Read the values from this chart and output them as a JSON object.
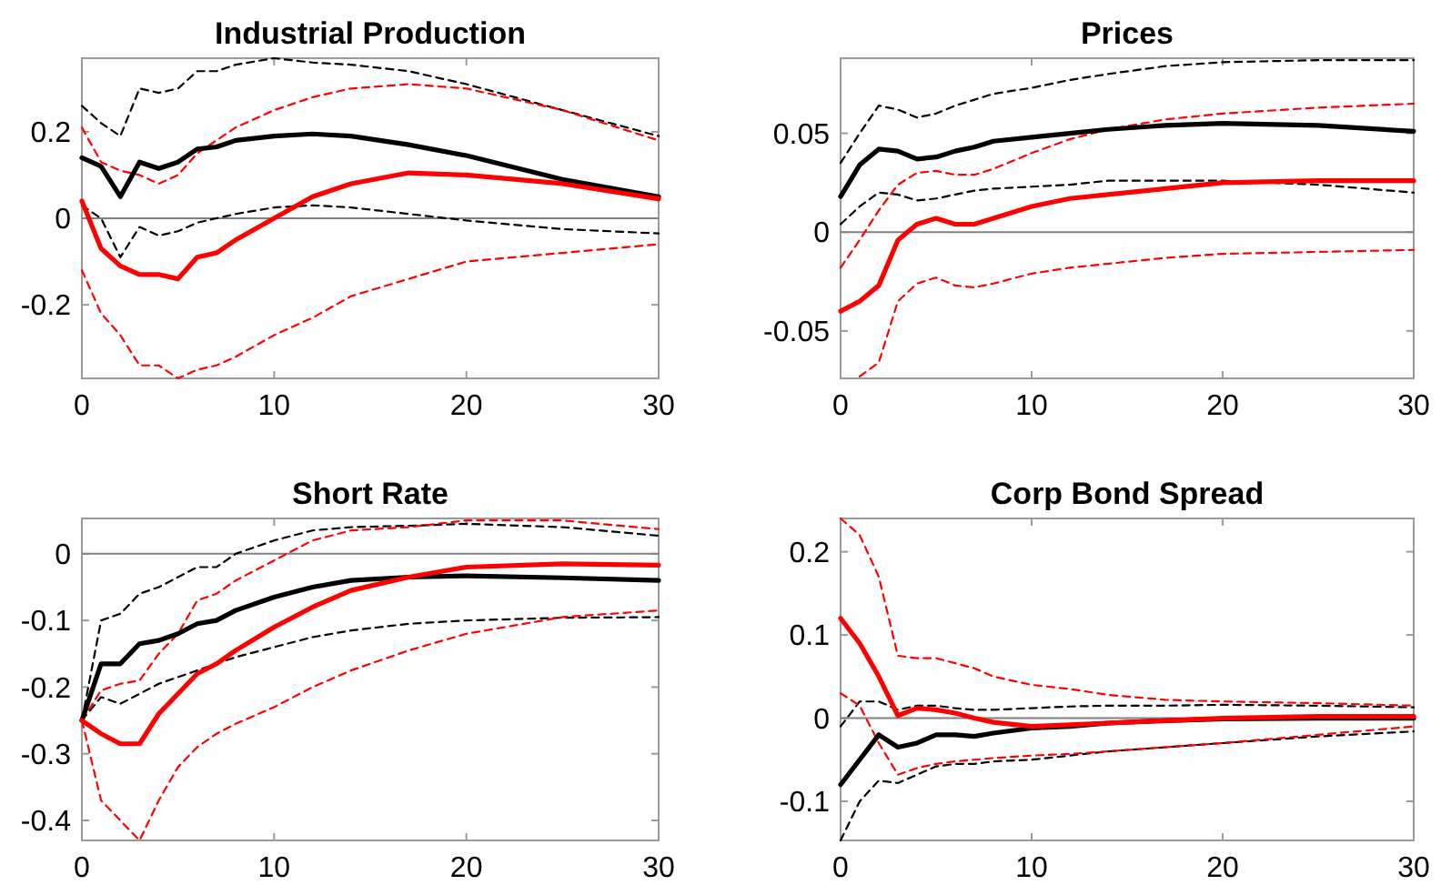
{
  "chart_data": [
    {
      "type": "line",
      "title": "Industrial Production",
      "x": [
        0,
        1,
        2,
        3,
        4,
        5,
        6,
        7,
        8,
        10,
        12,
        14,
        17,
        20,
        25,
        30
      ],
      "xlim": [
        0,
        30
      ],
      "xticks": [
        0,
        10,
        20,
        30
      ],
      "ylim": [
        -0.37,
        0.37
      ],
      "yticks": [
        -0.2,
        0,
        0.2
      ],
      "ref_lines": [
        {
          "axis": "y",
          "value": 0,
          "color": "#808080"
        }
      ],
      "series": [
        {
          "color": "#000000",
          "line_style": "dashed",
          "values": [
            0.26,
            0.22,
            0.19,
            0.3,
            0.29,
            0.3,
            0.34,
            0.34,
            0.355,
            0.37,
            0.36,
            0.355,
            0.34,
            0.31,
            0.25,
            0.19
          ]
        },
        {
          "color": "#000000",
          "line_style": "dashed",
          "values": [
            0.03,
            0,
            -0.09,
            -0.02,
            -0.04,
            -0.03,
            -0.01,
            0,
            0.01,
            0.025,
            0.03,
            0.025,
            0.01,
            -0.005,
            -0.025,
            -0.035
          ]
        },
        {
          "color": "#ff0000",
          "line_style": "dashed",
          "values": [
            0.21,
            0.13,
            0.11,
            0.1,
            0.08,
            0.1,
            0.15,
            0.18,
            0.21,
            0.25,
            0.28,
            0.3,
            0.31,
            0.3,
            0.25,
            0.18
          ]
        },
        {
          "color": "#ff0000",
          "line_style": "dashed",
          "values": [
            -0.12,
            -0.22,
            -0.27,
            -0.34,
            -0.34,
            -0.37,
            -0.35,
            -0.34,
            -0.32,
            -0.27,
            -0.23,
            -0.18,
            -0.14,
            -0.1,
            -0.08,
            -0.06
          ]
        },
        {
          "color": "#000000",
          "line_style": "solid",
          "values": [
            0.14,
            0.12,
            0.05,
            0.13,
            0.115,
            0.13,
            0.16,
            0.165,
            0.18,
            0.19,
            0.195,
            0.19,
            0.17,
            0.145,
            0.09,
            0.05
          ]
        },
        {
          "color": "#ff0000",
          "line_style": "solid",
          "values": [
            0.04,
            -0.07,
            -0.11,
            -0.13,
            -0.13,
            -0.14,
            -0.09,
            -0.08,
            -0.05,
            0,
            0.05,
            0.08,
            0.105,
            0.1,
            0.08,
            0.045
          ]
        }
      ]
    },
    {
      "type": "line",
      "title": "Prices",
      "x": [
        0,
        1,
        2,
        3,
        4,
        5,
        6,
        7,
        8,
        10,
        12,
        14,
        17,
        20,
        25,
        30
      ],
      "xlim": [
        0,
        30
      ],
      "xticks": [
        0,
        10,
        20,
        30
      ],
      "ylim": [
        -0.074,
        0.088
      ],
      "yticks": [
        -0.05,
        0,
        0.05
      ],
      "ref_lines": [
        {
          "axis": "y",
          "value": 0,
          "color": "#808080"
        }
      ],
      "series": [
        {
          "color": "#000000",
          "line_style": "dashed",
          "values": [
            0.035,
            0.05,
            0.064,
            0.062,
            0.058,
            0.06,
            0.064,
            0.067,
            0.07,
            0.073,
            0.077,
            0.08,
            0.084,
            0.086,
            0.087,
            0.087
          ]
        },
        {
          "color": "#000000",
          "line_style": "dashed",
          "values": [
            0.004,
            0.013,
            0.02,
            0.019,
            0.016,
            0.017,
            0.019,
            0.021,
            0.022,
            0.023,
            0.024,
            0.026,
            0.026,
            0.026,
            0.024,
            0.02
          ]
        },
        {
          "color": "#ff0000",
          "line_style": "dashed",
          "values": [
            -0.018,
            -0.004,
            0.011,
            0.024,
            0.03,
            0.031,
            0.029,
            0.029,
            0.032,
            0.04,
            0.047,
            0.052,
            0.057,
            0.06,
            0.063,
            0.065
          ]
        },
        {
          "color": "#ff0000",
          "line_style": "dashed",
          "values": [
            null,
            -0.073,
            -0.066,
            -0.035,
            -0.026,
            -0.023,
            -0.027,
            -0.028,
            -0.026,
            -0.021,
            -0.018,
            -0.016,
            -0.013,
            -0.011,
            -0.01,
            -0.009
          ]
        },
        {
          "color": "#000000",
          "line_style": "solid",
          "values": [
            0.018,
            0.034,
            0.042,
            0.041,
            0.037,
            0.038,
            0.041,
            0.043,
            0.046,
            0.048,
            0.05,
            0.052,
            0.054,
            0.055,
            0.054,
            0.051
          ]
        },
        {
          "color": "#ff0000",
          "line_style": "solid",
          "values": [
            -0.04,
            -0.035,
            -0.027,
            -0.004,
            0.004,
            0.007,
            0.004,
            0.004,
            0.007,
            0.013,
            0.017,
            0.019,
            0.022,
            0.025,
            0.026,
            0.026
          ]
        }
      ]
    },
    {
      "type": "line",
      "title": "Short Rate",
      "x": [
        0,
        1,
        2,
        3,
        4,
        5,
        6,
        7,
        8,
        10,
        12,
        14,
        17,
        20,
        25,
        30
      ],
      "xlim": [
        0,
        30
      ],
      "xticks": [
        0,
        10,
        20,
        30
      ],
      "ylim": [
        -0.43,
        0.053
      ],
      "yticks": [
        -0.4,
        -0.3,
        -0.2,
        -0.1,
        0
      ],
      "ref_lines": [
        {
          "axis": "y",
          "value": 0,
          "color": "#808080"
        }
      ],
      "series": [
        {
          "color": "#000000",
          "line_style": "dashed",
          "values": [
            -0.25,
            -0.1,
            -0.09,
            -0.06,
            -0.05,
            -0.035,
            -0.02,
            -0.02,
            0,
            0.02,
            0.035,
            0.04,
            0.042,
            0.045,
            0.04,
            0.027
          ]
        },
        {
          "color": "#000000",
          "line_style": "dashed",
          "values": [
            -0.25,
            -0.215,
            -0.225,
            -0.21,
            -0.195,
            -0.185,
            -0.175,
            -0.165,
            -0.155,
            -0.14,
            -0.125,
            -0.115,
            -0.105,
            -0.1,
            -0.096,
            -0.095
          ]
        },
        {
          "color": "#ff0000",
          "line_style": "dashed",
          "values": [
            -0.25,
            -0.205,
            -0.195,
            -0.19,
            -0.15,
            -0.12,
            -0.07,
            -0.06,
            -0.04,
            -0.01,
            0.02,
            0.035,
            0.04,
            0.05,
            0.05,
            0.037
          ]
        },
        {
          "color": "#ff0000",
          "line_style": "dashed",
          "values": [
            -0.25,
            -0.37,
            -0.4,
            -0.43,
            -0.37,
            -0.32,
            -0.29,
            -0.27,
            -0.255,
            -0.23,
            -0.2,
            -0.175,
            -0.145,
            -0.12,
            -0.095,
            -0.085
          ]
        },
        {
          "color": "#000000",
          "line_style": "solid",
          "values": [
            -0.25,
            -0.165,
            -0.165,
            -0.135,
            -0.13,
            -0.12,
            -0.105,
            -0.1,
            -0.085,
            -0.065,
            -0.05,
            -0.04,
            -0.035,
            -0.033,
            -0.036,
            -0.04
          ]
        },
        {
          "color": "#ff0000",
          "line_style": "solid",
          "values": [
            -0.25,
            -0.27,
            -0.285,
            -0.285,
            -0.24,
            -0.21,
            -0.18,
            -0.165,
            -0.145,
            -0.11,
            -0.08,
            -0.055,
            -0.035,
            -0.02,
            -0.015,
            -0.017
          ]
        }
      ]
    },
    {
      "type": "line",
      "title": "Corp Bond Spread",
      "x": [
        0,
        1,
        2,
        3,
        4,
        5,
        6,
        7,
        8,
        10,
        12,
        14,
        17,
        20,
        25,
        30
      ],
      "xlim": [
        0,
        30
      ],
      "xticks": [
        0,
        10,
        20,
        30
      ],
      "ylim": [
        -0.147,
        0.24
      ],
      "yticks": [
        -0.1,
        0,
        0.1,
        0.2
      ],
      "ref_lines": [
        {
          "axis": "y",
          "value": 0,
          "color": "#808080"
        }
      ],
      "series": [
        {
          "color": "#000000",
          "line_style": "dashed",
          "values": [
            -0.01,
            0.02,
            0.02,
            0.01,
            0.015,
            0.015,
            0.012,
            0.01,
            0.01,
            0.012,
            0.014,
            0.015,
            0.015,
            0.016,
            0.015,
            0.013
          ]
        },
        {
          "color": "#000000",
          "line_style": "dashed",
          "values": [
            -0.147,
            -0.1,
            -0.075,
            -0.078,
            -0.068,
            -0.058,
            -0.055,
            -0.055,
            -0.052,
            -0.05,
            -0.045,
            -0.04,
            -0.035,
            -0.03,
            -0.022,
            -0.016
          ]
        },
        {
          "color": "#ff0000",
          "line_style": "dashed",
          "values": [
            0.24,
            0.22,
            0.17,
            0.075,
            0.072,
            0.072,
            0.066,
            0.06,
            0.05,
            0.04,
            0.035,
            0.028,
            0.022,
            0.02,
            0.018,
            0.015
          ]
        },
        {
          "color": "#ff0000",
          "line_style": "dashed",
          "values": [
            0.03,
            0.015,
            -0.03,
            -0.068,
            -0.06,
            -0.055,
            -0.052,
            -0.05,
            -0.048,
            -0.045,
            -0.043,
            -0.04,
            -0.035,
            -0.03,
            -0.02,
            -0.01
          ]
        },
        {
          "color": "#000000",
          "line_style": "solid",
          "values": [
            -0.08,
            -0.05,
            -0.02,
            -0.035,
            -0.03,
            -0.02,
            -0.02,
            -0.022,
            -0.018,
            -0.012,
            -0.01,
            -0.006,
            -0.003,
            -0.001,
            0,
            0
          ]
        },
        {
          "color": "#ff0000",
          "line_style": "solid",
          "values": [
            0.12,
            0.09,
            0.05,
            0.003,
            0.012,
            0.01,
            0.006,
            0,
            -0.005,
            -0.01,
            -0.008,
            -0.006,
            -0.003,
            0,
            0.002,
            0.002
          ]
        }
      ]
    }
  ]
}
